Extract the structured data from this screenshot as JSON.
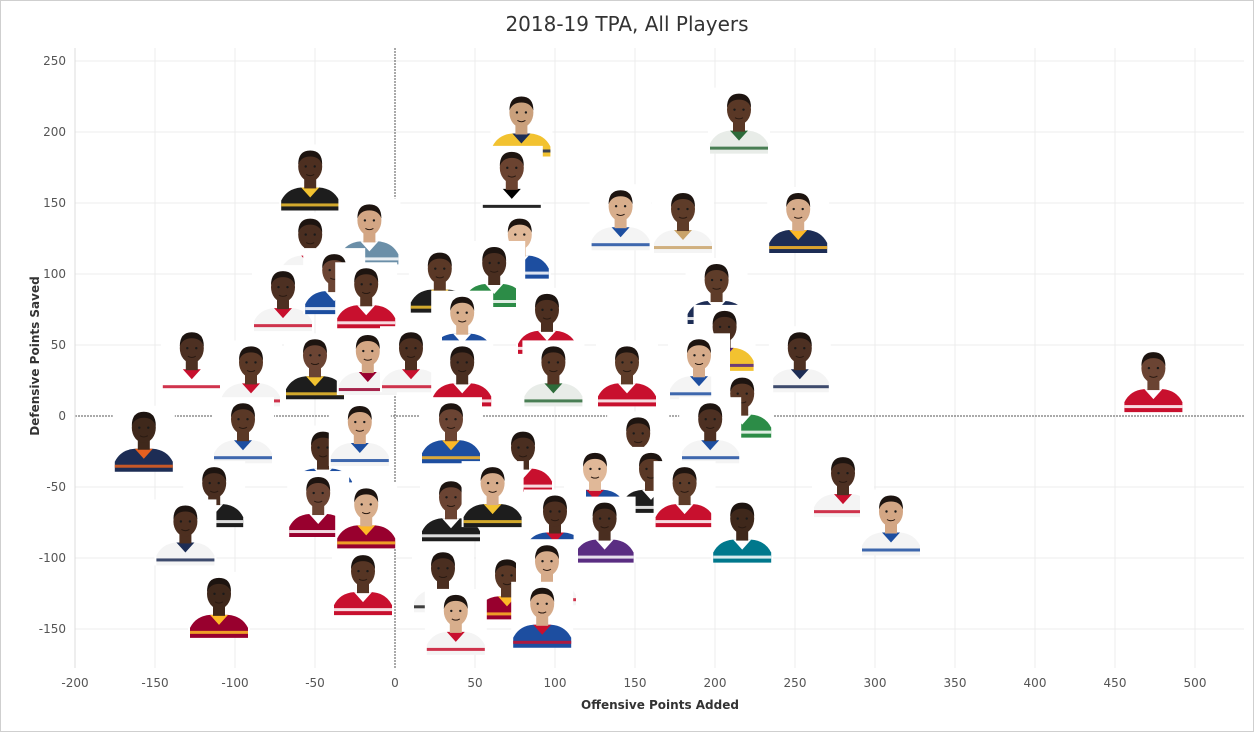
{
  "title": "2018-19 TPA, All Players",
  "chart_data": {
    "type": "scatter",
    "title": "2018-19 TPA, All Players",
    "xlabel": "Offensive Points Added",
    "ylabel": "Defensive Points Saved",
    "xlim": [
      -200,
      530
    ],
    "ylim": [
      -170,
      260
    ],
    "xticks": [
      -200,
      -150,
      -100,
      -50,
      0,
      50,
      100,
      150,
      200,
      250,
      300,
      350,
      400,
      450,
      500
    ],
    "yticks": [
      -150,
      -100,
      -50,
      0,
      50,
      100,
      150,
      200,
      250
    ],
    "xtick_labels": [
      "-200",
      "-150",
      "-100",
      "-50",
      "0",
      "50",
      "100",
      "150",
      "200",
      "250",
      "300",
      "350",
      "400",
      "450",
      "500"
    ],
    "ytick_labels": [
      "-150",
      "-100",
      "-50",
      "0",
      "50",
      "100",
      "150",
      "200",
      "250"
    ],
    "grid": true,
    "marker": "player headshot",
    "points": [
      {
        "x": 215,
        "y": 208,
        "jersey": "#e8ece8",
        "trim": "#2d6b3a",
        "skin": "#5a3826"
      },
      {
        "x": 79,
        "y": 206,
        "jersey": "#f2c230",
        "trim": "#1d2d55",
        "skin": "#caa07c"
      },
      {
        "x": 73,
        "y": 167,
        "jersey": "#ffffff",
        "trim": "#000000",
        "skin": "#6b4330"
      },
      {
        "x": -53,
        "y": 168,
        "jersey": "#1d1d1d",
        "trim": "#f2c230",
        "skin": "#4d2f20"
      },
      {
        "x": 141,
        "y": 140,
        "jersey": "#f4f4f4",
        "trim": "#1d4ea0",
        "skin": "#d8ae8c"
      },
      {
        "x": 180,
        "y": 138,
        "jersey": "#f4f4f4",
        "trim": "#c9a36a",
        "skin": "#5e3c29"
      },
      {
        "x": 252,
        "y": 138,
        "jersey": "#1d2d55",
        "trim": "#fdb927",
        "skin": "#d6ab8a"
      },
      {
        "x": -53,
        "y": 120,
        "jersey": "#f4f4f4",
        "trim": "#c8102e",
        "skin": "#4a2e20"
      },
      {
        "x": -16,
        "y": 130,
        "jersey": "#6b8fa8",
        "trim": "#ffffff",
        "skin": "#d3a684"
      },
      {
        "x": 78,
        "y": 120,
        "jersey": "#1d4ea0",
        "trim": "#ffffff",
        "skin": "#e0b898"
      },
      {
        "x": -70,
        "y": 83,
        "jersey": "#f4f4f4",
        "trim": "#c8102e",
        "skin": "#4d3022"
      },
      {
        "x": -38,
        "y": 95,
        "jersey": "#1d4ea0",
        "trim": "#ffffff",
        "skin": "#6b4433"
      },
      {
        "x": -18,
        "y": 85,
        "jersey": "#c8102e",
        "trim": "#ffffff",
        "skin": "#563524"
      },
      {
        "x": 28,
        "y": 96,
        "jersey": "#1d1d1d",
        "trim": "#f2c230",
        "skin": "#5a3826"
      },
      {
        "x": 62,
        "y": 100,
        "jersey": "#2c8c47",
        "trim": "#ffffff",
        "skin": "#4a2e20"
      },
      {
        "x": 42,
        "y": 65,
        "jersey": "#1d4ea0",
        "trim": "#ffffff",
        "skin": "#d8ae8c"
      },
      {
        "x": 95,
        "y": 67,
        "jersey": "#c8102e",
        "trim": "#ffffff",
        "skin": "#4d2f20"
      },
      {
        "x": 201,
        "y": 88,
        "jersey": "#1d2d55",
        "trim": "#ffffff",
        "skin": "#5e3c29"
      },
      {
        "x": 206,
        "y": 55,
        "jersey": "#f2c230",
        "trim": "#552583",
        "skin": "#4a2e20"
      },
      {
        "x": -127,
        "y": 40,
        "jersey": "#ffffff",
        "trim": "#c8102e",
        "skin": "#4d3022"
      },
      {
        "x": -90,
        "y": 30,
        "jersey": "#f4f4f4",
        "trim": "#c8102e",
        "skin": "#5a3826"
      },
      {
        "x": -50,
        "y": 35,
        "jersey": "#1d1d1d",
        "trim": "#f2c230",
        "skin": "#6b4433"
      },
      {
        "x": -17,
        "y": 38,
        "jersey": "#f4f4f4",
        "trim": "#98002e",
        "skin": "#d3a684"
      },
      {
        "x": 10,
        "y": 40,
        "jersey": "#f4f4f4",
        "trim": "#c8102e",
        "skin": "#4d2f20"
      },
      {
        "x": 42,
        "y": 30,
        "jersey": "#c8102e",
        "trim": "#ffffff",
        "skin": "#4a2e20"
      },
      {
        "x": 99,
        "y": 30,
        "jersey": "#e8ece8",
        "trim": "#2d6b3a",
        "skin": "#563524"
      },
      {
        "x": 145,
        "y": 30,
        "jersey": "#c8102e",
        "trim": "#ffffff",
        "skin": "#5e3c29"
      },
      {
        "x": 190,
        "y": 35,
        "jersey": "#f4f4f4",
        "trim": "#1d4ea0",
        "skin": "#d6ab8a"
      },
      {
        "x": 253,
        "y": 40,
        "jersey": "#f4f4f4",
        "trim": "#1d2d55",
        "skin": "#4d3022"
      },
      {
        "x": 217,
        "y": 8,
        "jersey": "#2c8c47",
        "trim": "#ffffff",
        "skin": "#5a3826"
      },
      {
        "x": 474,
        "y": 26,
        "jersey": "#c8102e",
        "trim": "#ffffff",
        "skin": "#6b4433"
      },
      {
        "x": -157,
        "y": -16,
        "jersey": "#1d2d55",
        "trim": "#e56020",
        "skin": "#3f281b"
      },
      {
        "x": -95,
        "y": -10,
        "jersey": "#f4f4f4",
        "trim": "#1d4ea0",
        "skin": "#5a3826"
      },
      {
        "x": -45,
        "y": -30,
        "jersey": "#1d4ea0",
        "trim": "#ffffff",
        "skin": "#4d2f20"
      },
      {
        "x": -22,
        "y": -12,
        "jersey": "#f4f4f4",
        "trim": "#1d4ea0",
        "skin": "#d3a684"
      },
      {
        "x": 35,
        "y": -10,
        "jersey": "#1d4ea0",
        "trim": "#fdb927",
        "skin": "#6b4433"
      },
      {
        "x": 80,
        "y": -30,
        "jersey": "#c8102e",
        "trim": "#ffffff",
        "skin": "#4a2e20"
      },
      {
        "x": 152,
        "y": -20,
        "jersey": "#1d1d1d",
        "trim": "#ffffff",
        "skin": "#563524"
      },
      {
        "x": 197,
        "y": -10,
        "jersey": "#f4f4f4",
        "trim": "#1d4ea0",
        "skin": "#4d3022"
      },
      {
        "x": 125,
        "y": -45,
        "jersey": "#1d4ea0",
        "trim": "#c8102e",
        "skin": "#e0b898"
      },
      {
        "x": 160,
        "y": -45,
        "jersey": "#1d1d1d",
        "trim": "#ffffff",
        "skin": "#5a3826"
      },
      {
        "x": 181,
        "y": -55,
        "jersey": "#c8102e",
        "trim": "#ffffff",
        "skin": "#5e3c29"
      },
      {
        "x": -113,
        "y": -55,
        "jersey": "#1d1d1d",
        "trim": "#ffffff",
        "skin": "#4a2e20"
      },
      {
        "x": -48,
        "y": -62,
        "jersey": "#98002e",
        "trim": "#ffffff",
        "skin": "#6b4433"
      },
      {
        "x": -18,
        "y": -70,
        "jersey": "#98002e",
        "trim": "#fdb927",
        "skin": "#d8ae8c"
      },
      {
        "x": 35,
        "y": -65,
        "jersey": "#1d1d1d",
        "trim": "#ffffff",
        "skin": "#6b4433"
      },
      {
        "x": 61,
        "y": -55,
        "jersey": "#1d1d1d",
        "trim": "#f2c230",
        "skin": "#d6ab8a"
      },
      {
        "x": 100,
        "y": -75,
        "jersey": "#1d4ea0",
        "trim": "#c8102e",
        "skin": "#4d2f20"
      },
      {
        "x": 131,
        "y": -80,
        "jersey": "#5a2d82",
        "trim": "#ffffff",
        "skin": "#4a2e20"
      },
      {
        "x": 217,
        "y": -80,
        "jersey": "#00788c",
        "trim": "#ffffff",
        "skin": "#3f281b"
      },
      {
        "x": 280,
        "y": -48,
        "jersey": "#f4f4f4",
        "trim": "#c8102e",
        "skin": "#4d3022"
      },
      {
        "x": 310,
        "y": -75,
        "jersey": "#f4f4f4",
        "trim": "#1d4ea0",
        "skin": "#d3a684"
      },
      {
        "x": -131,
        "y": -82,
        "jersey": "#f4f4f4",
        "trim": "#1d2d55",
        "skin": "#4d2f20"
      },
      {
        "x": -110,
        "y": -133,
        "jersey": "#98002e",
        "trim": "#fdb927",
        "skin": "#3f281b"
      },
      {
        "x": -20,
        "y": -117,
        "jersey": "#c8102e",
        "trim": "#ffffff",
        "skin": "#563524"
      },
      {
        "x": 30,
        "y": -115,
        "jersey": "#f4f4f4",
        "trim": "#1d1d1d",
        "skin": "#4a2e20"
      },
      {
        "x": 70,
        "y": -120,
        "jersey": "#98002e",
        "trim": "#fdb927",
        "skin": "#5a3826"
      },
      {
        "x": 95,
        "y": -110,
        "jersey": "#f4f4f4",
        "trim": "#c8102e",
        "skin": "#d6ab8a"
      },
      {
        "x": 92,
        "y": -140,
        "jersey": "#1d4ea0",
        "trim": "#c8102e",
        "skin": "#d6ab8a"
      },
      {
        "x": 38,
        "y": -145,
        "jersey": "#f4f4f4",
        "trim": "#c8102e",
        "skin": "#d8ae8c"
      }
    ]
  }
}
